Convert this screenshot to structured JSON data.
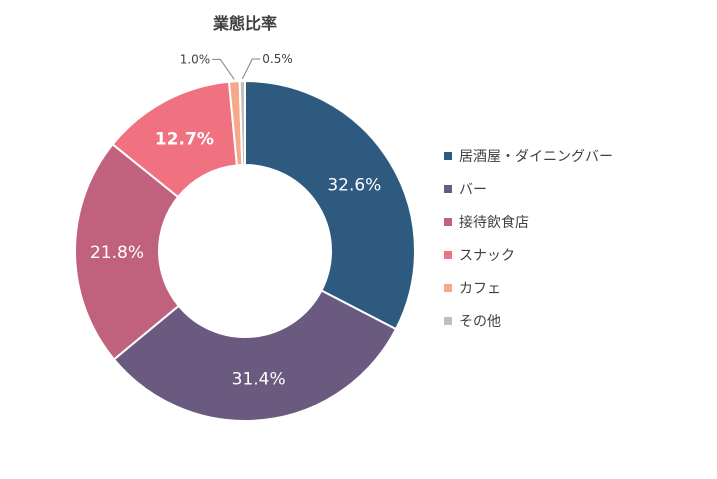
{
  "chart_data": {
    "type": "pie",
    "title": "業態比率",
    "categories": [
      "居酒屋・ダイニングバー",
      "バー",
      "接待飲食店",
      "スナック",
      "カフェ",
      "その他"
    ],
    "values": [
      32.6,
      31.4,
      21.8,
      12.7,
      1.0,
      0.5
    ],
    "labels": [
      "32.6%",
      "31.4%",
      "21.8%",
      "12.7%",
      "1.0%",
      "0.5%"
    ],
    "colors": [
      "#2e5a80",
      "#6b5a80",
      "#c0627e",
      "#f07280",
      "#f5a98a",
      "#bfbfbf"
    ],
    "donut": true,
    "legend_position": "right"
  }
}
